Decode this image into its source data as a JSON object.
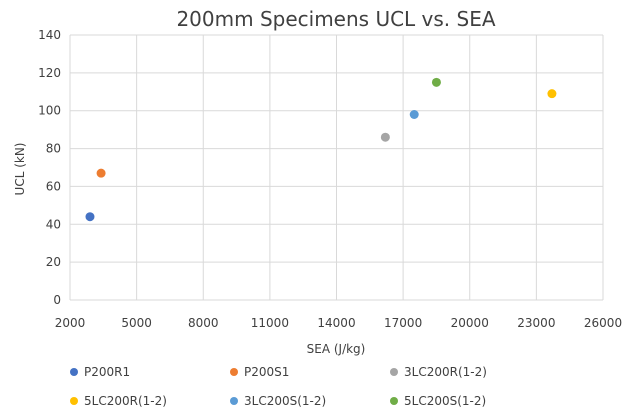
{
  "chart_data": {
    "type": "scatter",
    "title": "200mm Specimens UCL vs. SEA",
    "xlabel": "SEA (J/kg)",
    "ylabel": "UCL (kN)",
    "xlim": [
      2000,
      26000
    ],
    "ylim": [
      0,
      140
    ],
    "xticks": [
      2000,
      5000,
      8000,
      11000,
      14000,
      17000,
      20000,
      23000,
      26000
    ],
    "yticks": [
      0,
      20,
      40,
      60,
      80,
      100,
      120,
      140
    ],
    "grid": true,
    "legend_position": "bottom",
    "series": [
      {
        "name": "P200R1",
        "color": "#4472C4",
        "points": [
          {
            "x": 2900,
            "y": 44
          }
        ]
      },
      {
        "name": "P200S1",
        "color": "#ED7D31",
        "points": [
          {
            "x": 3400,
            "y": 67
          }
        ]
      },
      {
        "name": "3LC200R(1-2)",
        "color": "#A5A5A5",
        "points": [
          {
            "x": 16200,
            "y": 86
          }
        ]
      },
      {
        "name": "5LC200R(1-2)",
        "color": "#FFC000",
        "points": [
          {
            "x": 23700,
            "y": 109
          }
        ]
      },
      {
        "name": "3LC200S(1-2)",
        "color": "#5B9BD5",
        "points": [
          {
            "x": 17500,
            "y": 98
          }
        ]
      },
      {
        "name": "5LC200S(1-2)",
        "color": "#70AD47",
        "points": [
          {
            "x": 18500,
            "y": 115
          }
        ]
      }
    ]
  }
}
